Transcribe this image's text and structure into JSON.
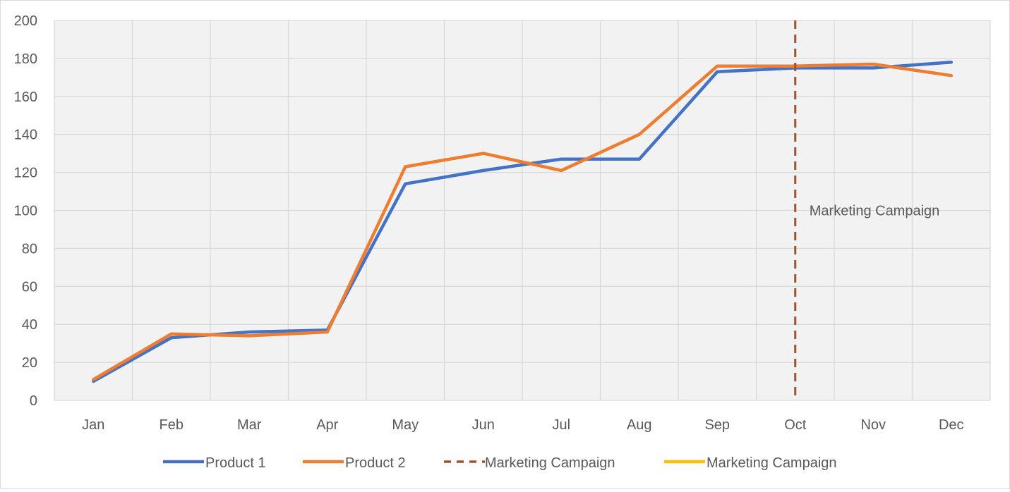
{
  "chart_data": {
    "type": "line",
    "categories": [
      "Jan",
      "Feb",
      "Mar",
      "Apr",
      "May",
      "Jun",
      "Jul",
      "Aug",
      "Sep",
      "Oct",
      "Nov",
      "Dec"
    ],
    "ylim": [
      0,
      200
    ],
    "yticks": [
      "0",
      "20",
      "40",
      "60",
      "80",
      "100",
      "120",
      "140",
      "160",
      "180",
      "200"
    ],
    "grid": true,
    "legend_position": "bottom",
    "series": [
      {
        "name": "Product 1",
        "color": "#4472C4",
        "values": [
          10,
          33,
          36,
          37,
          114,
          121,
          127,
          127,
          173,
          175,
          175,
          178
        ]
      },
      {
        "name": "Product 2",
        "color": "#ED7D31",
        "values": [
          11,
          35,
          34,
          36,
          123,
          130,
          121,
          140,
          176,
          176,
          177,
          171
        ]
      }
    ],
    "marker_line": {
      "name": "Marketing Campaign",
      "category": "Oct",
      "color": "#A0522D",
      "style": "dashed"
    },
    "annotation": {
      "text": "Marketing Campaign",
      "category": "Oct",
      "y": 100
    },
    "legend": [
      {
        "name": "Product 1",
        "color": "#4472C4",
        "style": "solid"
      },
      {
        "name": "Product 2",
        "color": "#ED7D31",
        "style": "solid"
      },
      {
        "name": "Marketing Campaign",
        "color": "#A0522D",
        "style": "dashed"
      },
      {
        "name": "Marketing Campaign",
        "color": "#FFC000",
        "style": "solid"
      }
    ]
  }
}
